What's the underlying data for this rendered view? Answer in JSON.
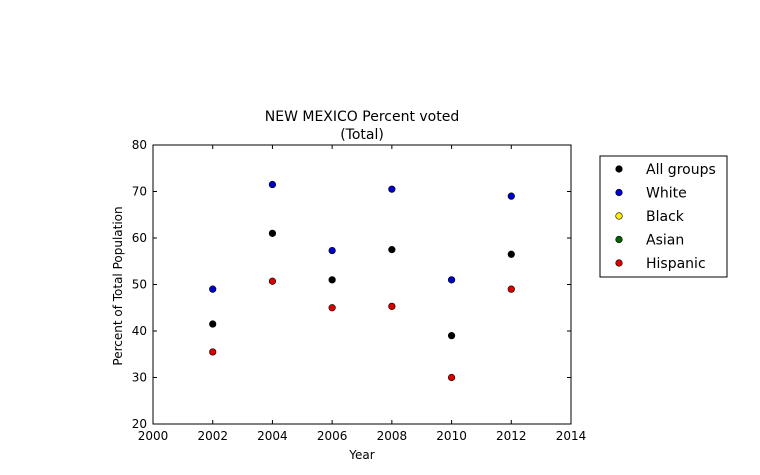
{
  "chart_data": {
    "type": "scatter",
    "title": "NEW MEXICO Percent voted",
    "subtitle": "(Total)",
    "xlabel": "Year",
    "ylabel": "Percent of Total Population",
    "xlim": [
      2000,
      2014
    ],
    "ylim": [
      20,
      80
    ],
    "xticks": [
      "2000",
      "2002",
      "2004",
      "2006",
      "2008",
      "2010",
      "2012",
      "2014"
    ],
    "yticks": [
      "20",
      "30",
      "40",
      "50",
      "60",
      "70",
      "80"
    ],
    "grid": false,
    "legend_position": "right",
    "x": [
      2002,
      2004,
      2006,
      2008,
      2010,
      2012
    ],
    "series": [
      {
        "name": "All groups",
        "color": "#000000",
        "values": [
          41.5,
          61.0,
          51.0,
          57.5,
          39.0,
          56.5
        ]
      },
      {
        "name": "White",
        "color": "#0000cc",
        "values": [
          49.0,
          71.5,
          57.3,
          70.5,
          51.0,
          69.0
        ]
      },
      {
        "name": "Black",
        "color": "#ffee00",
        "values": [
          null,
          null,
          null,
          null,
          null,
          null
        ]
      },
      {
        "name": "Asian",
        "color": "#006600",
        "values": [
          null,
          null,
          null,
          null,
          null,
          null
        ]
      },
      {
        "name": "Hispanic",
        "color": "#dd0000",
        "values": [
          35.5,
          50.7,
          45.0,
          45.3,
          30.0,
          49.0
        ]
      }
    ]
  }
}
